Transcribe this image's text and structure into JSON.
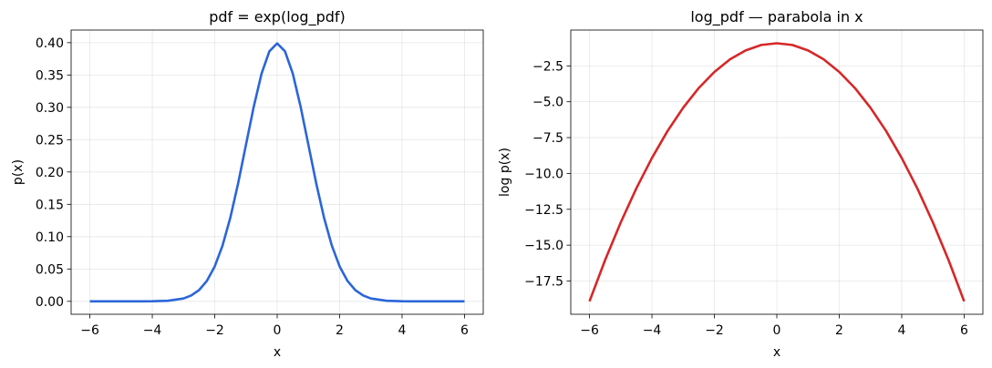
{
  "chart_data": [
    {
      "type": "line",
      "title": "pdf = exp(log_pdf)",
      "xlabel": "x",
      "ylabel": "p(x)",
      "xlim": [
        -6.6,
        6.6
      ],
      "ylim": [
        -0.02,
        0.4195
      ],
      "grid": true,
      "x_ticks": [
        -6,
        -4,
        -2,
        0,
        2,
        4,
        6
      ],
      "x_tick_labels": [
        "−6",
        "−4",
        "−2",
        "0",
        "2",
        "4",
        "6"
      ],
      "y_ticks": [
        0.0,
        0.05,
        0.1,
        0.15,
        0.2,
        0.25,
        0.3,
        0.35,
        0.4
      ],
      "y_tick_labels": [
        "0.00",
        "0.05",
        "0.10",
        "0.15",
        "0.20",
        "0.25",
        "0.30",
        "0.35",
        "0.40"
      ],
      "series": [
        {
          "color": "#2b65d9",
          "x": [
            -6,
            -5.5,
            -5,
            -4.5,
            -4,
            -3.5,
            -3,
            -2.75,
            -2.5,
            -2.25,
            -2,
            -1.75,
            -1.5,
            -1.25,
            -1,
            -0.75,
            -0.5,
            -0.25,
            0,
            0.25,
            0.5,
            0.75,
            1,
            1.25,
            1.5,
            1.75,
            2,
            2.25,
            2.5,
            2.75,
            3,
            3.5,
            4,
            4.5,
            5,
            5.5,
            6
          ],
          "y": [
            0.0,
            0.0,
            0.0,
            0.0,
            0.0001,
            0.0009,
            0.0044,
            0.0091,
            0.0175,
            0.0317,
            0.054,
            0.0863,
            0.1295,
            0.1826,
            0.242,
            0.3011,
            0.3521,
            0.3867,
            0.3989,
            0.3867,
            0.3521,
            0.3011,
            0.242,
            0.1826,
            0.1295,
            0.0863,
            0.054,
            0.0317,
            0.0175,
            0.0091,
            0.0044,
            0.0009,
            0.0001,
            0.0,
            0.0,
            0.0,
            0.0
          ]
        }
      ]
    },
    {
      "type": "line",
      "title": "log_pdf — parabola in x",
      "xlabel": "x",
      "ylabel": "log p(x)",
      "xlim": [
        -6.6,
        6.6
      ],
      "ylim": [
        -19.82,
        0.0
      ],
      "grid": true,
      "x_ticks": [
        -6,
        -4,
        -2,
        0,
        2,
        4,
        6
      ],
      "x_tick_labels": [
        "−6",
        "−4",
        "−2",
        "0",
        "2",
        "4",
        "6"
      ],
      "y_ticks": [
        -17.5,
        -15.0,
        -12.5,
        -10.0,
        -7.5,
        -5.0,
        -2.5
      ],
      "y_tick_labels": [
        "−17.5",
        "−15.0",
        "−12.5",
        "−10.0",
        "−7.5",
        "−5.0",
        "−2.5"
      ],
      "series": [
        {
          "color": "#d62728",
          "x": [
            -6,
            -5.5,
            -5,
            -4.5,
            -4,
            -3.5,
            -3,
            -2.5,
            -2,
            -1.5,
            -1,
            -0.5,
            0,
            0.5,
            1,
            1.5,
            2,
            2.5,
            3,
            3.5,
            4,
            4.5,
            5,
            5.5,
            6
          ],
          "y": [
            -18.92,
            -16.04,
            -13.42,
            -11.04,
            -8.92,
            -7.04,
            -5.42,
            -4.04,
            -2.92,
            -2.04,
            -1.42,
            -1.04,
            -0.92,
            -1.04,
            -1.42,
            -2.04,
            -2.92,
            -4.04,
            -5.42,
            -7.04,
            -8.92,
            -11.04,
            -13.42,
            -16.04,
            -18.92
          ]
        }
      ]
    }
  ]
}
